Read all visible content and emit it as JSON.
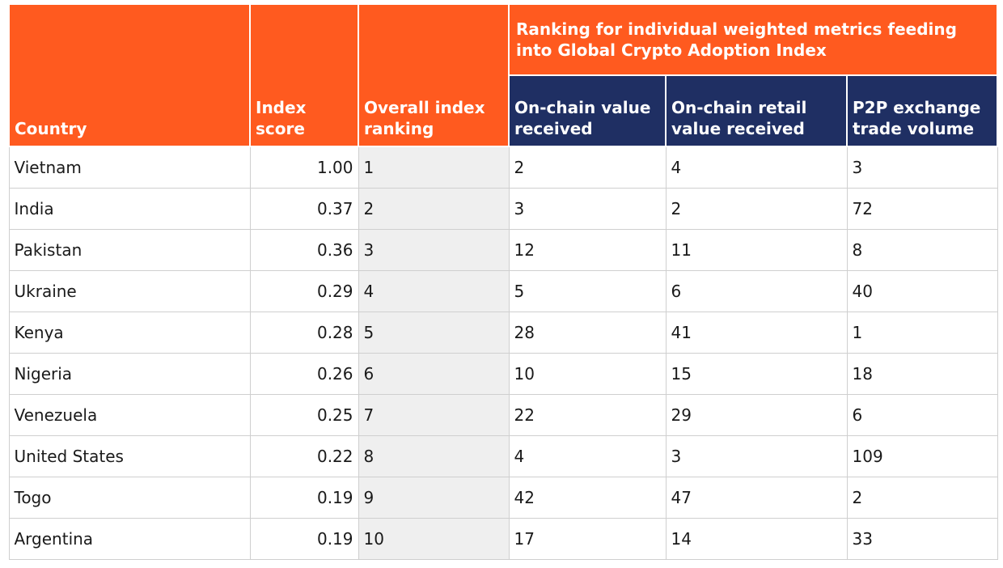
{
  "table": {
    "headers": {
      "country": "Country",
      "index_score": "Index score",
      "overall_rank": "Overall index ranking",
      "group": "Ranking for individual weighted metrics feeding into Global Crypto Adoption Index",
      "metric1": "On-chain value received",
      "metric2": "On-chain retail value received",
      "metric3": "P2P exchange trade volume"
    },
    "rows": [
      {
        "country": "Vietnam",
        "score": "1.00",
        "rank": "1",
        "m1": "2",
        "m2": "4",
        "m3": "3"
      },
      {
        "country": "India",
        "score": "0.37",
        "rank": "2",
        "m1": "3",
        "m2": "2",
        "m3": "72"
      },
      {
        "country": "Pakistan",
        "score": "0.36",
        "rank": "3",
        "m1": "12",
        "m2": "11",
        "m3": "8"
      },
      {
        "country": "Ukraine",
        "score": "0.29",
        "rank": "4",
        "m1": "5",
        "m2": "6",
        "m3": "40"
      },
      {
        "country": "Kenya",
        "score": "0.28",
        "rank": "5",
        "m1": "28",
        "m2": "41",
        "m3": "1"
      },
      {
        "country": "Nigeria",
        "score": "0.26",
        "rank": "6",
        "m1": "10",
        "m2": "15",
        "m3": "18"
      },
      {
        "country": "Venezuela",
        "score": "0.25",
        "rank": "7",
        "m1": "22",
        "m2": "29",
        "m3": "6"
      },
      {
        "country": "United States",
        "score": "0.22",
        "rank": "8",
        "m1": "4",
        "m2": "3",
        "m3": "109"
      },
      {
        "country": "Togo",
        "score": "0.19",
        "rank": "9",
        "m1": "42",
        "m2": "47",
        "m3": "2"
      },
      {
        "country": "Argentina",
        "score": "0.19",
        "rank": "10",
        "m1": "17",
        "m2": "14",
        "m3": "33"
      }
    ]
  },
  "colors": {
    "header_orange": "#ff5a1f",
    "header_navy": "#1f2f63",
    "rank_column_bg": "#efefef"
  }
}
